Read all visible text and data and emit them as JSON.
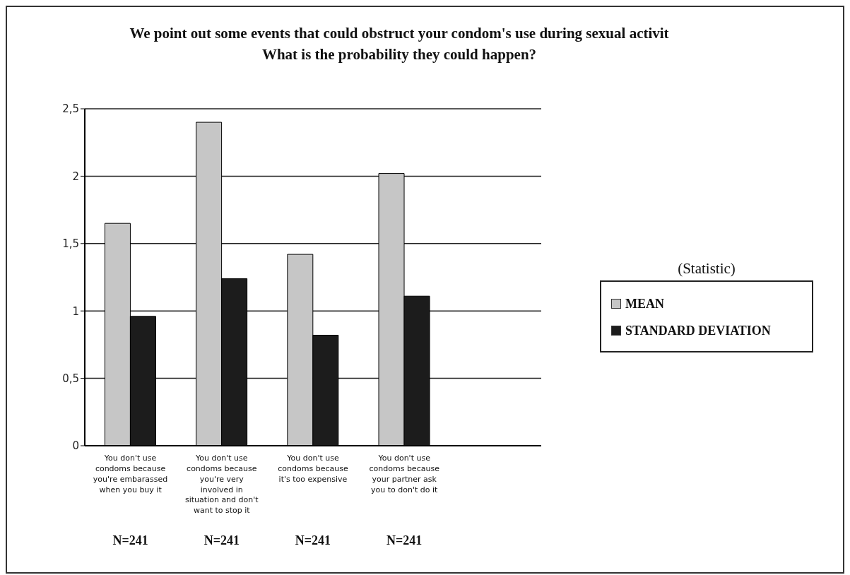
{
  "chart_data": {
    "type": "bar",
    "title": "We point out some events that could obstruct your condom's use during sexual activit",
    "subtitle": "What is the probability they could happen?",
    "legend_title": "(Statistic)",
    "categories": [
      "You don't use condoms because you're embarassed when you buy it",
      "You don't use condoms because you're very involved in situation and don't want to stop it",
      "You don't use condoms because it's too expensive",
      "You don't use condoms because your partner ask you to don't do it",
      null
    ],
    "series": [
      {
        "name": "MEAN",
        "color": "#c6c6c6",
        "values": [
          1.65,
          2.4,
          1.42,
          2.02,
          null
        ]
      },
      {
        "name": "STANDARD DEVIATION",
        "color": "#1c1c1c",
        "values": [
          0.96,
          1.24,
          0.82,
          1.11,
          null
        ]
      }
    ],
    "ylim": [
      0,
      2.5
    ],
    "yticks": [
      0,
      {
        "value": 0.5,
        "label": "0,5"
      },
      1,
      {
        "value": 1.5,
        "label": "1,5"
      },
      2,
      {
        "value": 2.5,
        "label": "2,5"
      }
    ],
    "grid": "y",
    "legend": "right",
    "annotations": [
      "N=241",
      "N=241",
      "N=241",
      "N=241"
    ]
  }
}
